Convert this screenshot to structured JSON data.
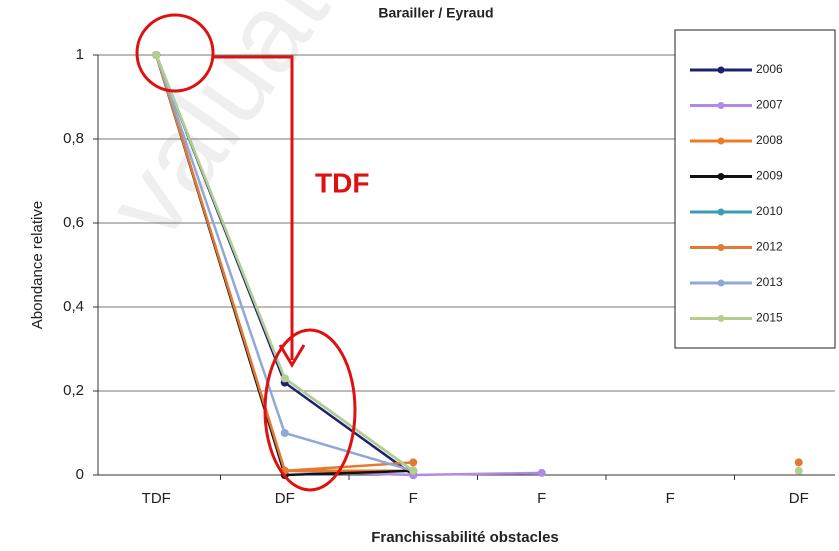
{
  "chart_data": {
    "type": "line",
    "title": "Barailler / Eyraud",
    "xlabel": "Franchissabilité obstacles",
    "ylabel": "Abondance relative",
    "annotation": "TDF",
    "watermark": "valuation",
    "categories": [
      "TDF",
      "DF",
      "F",
      "F",
      "F",
      "DF"
    ],
    "ylim": [
      0,
      1
    ],
    "yticks": [
      0,
      {
        "value": 0.2,
        "label": "0,2"
      },
      {
        "value": 0.4,
        "label": "0,4"
      },
      {
        "value": 0.6,
        "label": "0,6"
      },
      {
        "value": 0.8,
        "label": "0,8"
      },
      1
    ],
    "grid": true,
    "legend": "upper right",
    "series": [
      {
        "name": "2006",
        "color": "#1f2070",
        "values": [
          1,
          0.22,
          0,
          null,
          null,
          null
        ]
      },
      {
        "name": "2007",
        "color": "#b08ae6",
        "values": [
          1,
          0.01,
          0,
          0.005,
          null,
          null
        ]
      },
      {
        "name": "2008",
        "color": "#f07a20",
        "values": [
          1,
          0.01,
          0.01,
          null,
          null,
          null
        ]
      },
      {
        "name": "2009",
        "color": "#111111",
        "values": [
          1,
          0,
          0.01,
          null,
          null,
          null
        ]
      },
      {
        "name": "2010",
        "color": "#3a9eb0",
        "values": [
          1,
          0.23,
          0.01,
          null,
          null,
          null
        ]
      },
      {
        "name": "2012",
        "color": "#e07a34",
        "values": [
          1,
          0.01,
          0.03,
          null,
          null,
          0.03
        ]
      },
      {
        "name": "2013",
        "color": "#8fa8d8",
        "values": [
          1,
          0.1,
          0.01,
          null,
          null,
          null
        ]
      },
      {
        "name": "2015",
        "color": "#b4cf8c",
        "values": [
          1,
          0.23,
          0.01,
          null,
          null,
          0.01
        ]
      }
    ]
  }
}
